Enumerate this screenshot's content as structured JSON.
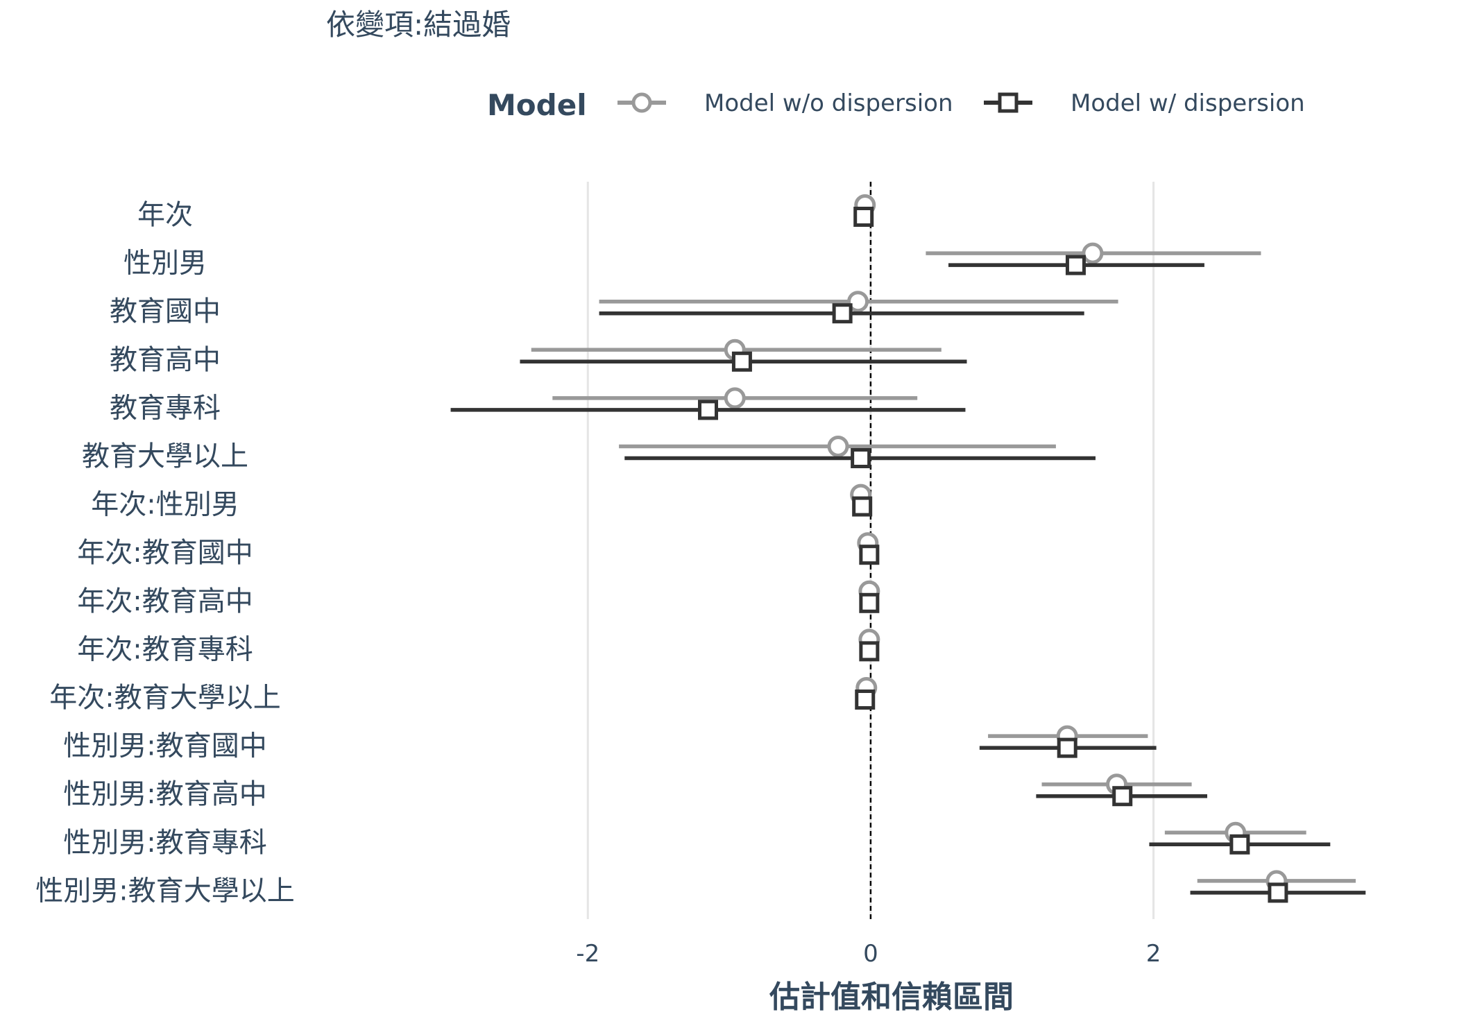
{
  "chart_data": {
    "type": "forest",
    "title": "依變項:結過婚",
    "xlabel": "估計值和信賴區間",
    "ylabel": "",
    "xlim": [
      -3.9,
      3.95
    ],
    "x_ticks": [
      -2,
      0,
      2
    ],
    "x_tick_labels": [
      "-2",
      "0",
      "2"
    ],
    "reference_line": 0,
    "grid": true,
    "legend": {
      "title": "Model",
      "position": "top"
    },
    "colors": {
      "model_wo": "#999999",
      "model_w": "#333333",
      "text": "#34495e",
      "grid": "#e5e5e5"
    },
    "categories": [
      "年次",
      "性別男",
      "教育國中",
      "教育高中",
      "教育專科",
      "教育大學以上",
      "年次:性別男",
      "年次:教育國中",
      "年次:教育高中",
      "年次:教育專科",
      "年次:教育大學以上",
      "性別男:教育國中",
      "性別男:教育高中",
      "性別男:教育專科",
      "性別男:教育大學以上"
    ],
    "series": [
      {
        "name": "Model w/o dispersion",
        "marker": "circle",
        "estimate": [
          -0.04,
          1.57,
          -0.09,
          -0.96,
          -0.96,
          -0.23,
          -0.07,
          -0.02,
          -0.01,
          -0.01,
          -0.03,
          1.39,
          1.74,
          2.58,
          2.87
        ],
        "lower": [
          -0.04,
          0.39,
          -1.92,
          -2.4,
          -2.25,
          -1.78,
          -0.07,
          -0.02,
          -0.01,
          -0.01,
          -0.03,
          0.83,
          1.21,
          2.08,
          2.31
        ],
        "upper": [
          -0.04,
          2.76,
          1.75,
          0.5,
          0.33,
          1.31,
          -0.07,
          -0.02,
          -0.01,
          -0.01,
          -0.03,
          1.96,
          2.27,
          3.08,
          3.43
        ]
      },
      {
        "name": "Model w/ dispersion",
        "marker": "square",
        "estimate": [
          -0.05,
          1.45,
          -0.2,
          -0.91,
          -1.15,
          -0.07,
          -0.06,
          -0.01,
          -0.01,
          -0.01,
          -0.04,
          1.39,
          1.78,
          2.61,
          2.88
        ],
        "lower": [
          -0.05,
          0.55,
          -1.92,
          -2.48,
          -2.97,
          -1.74,
          -0.06,
          -0.01,
          -0.01,
          -0.01,
          -0.04,
          0.77,
          1.17,
          1.97,
          2.26
        ],
        "upper": [
          -0.05,
          2.36,
          1.51,
          0.68,
          0.67,
          1.59,
          -0.06,
          -0.01,
          -0.01,
          -0.01,
          -0.04,
          2.02,
          2.38,
          3.25,
          3.5
        ]
      }
    ]
  }
}
